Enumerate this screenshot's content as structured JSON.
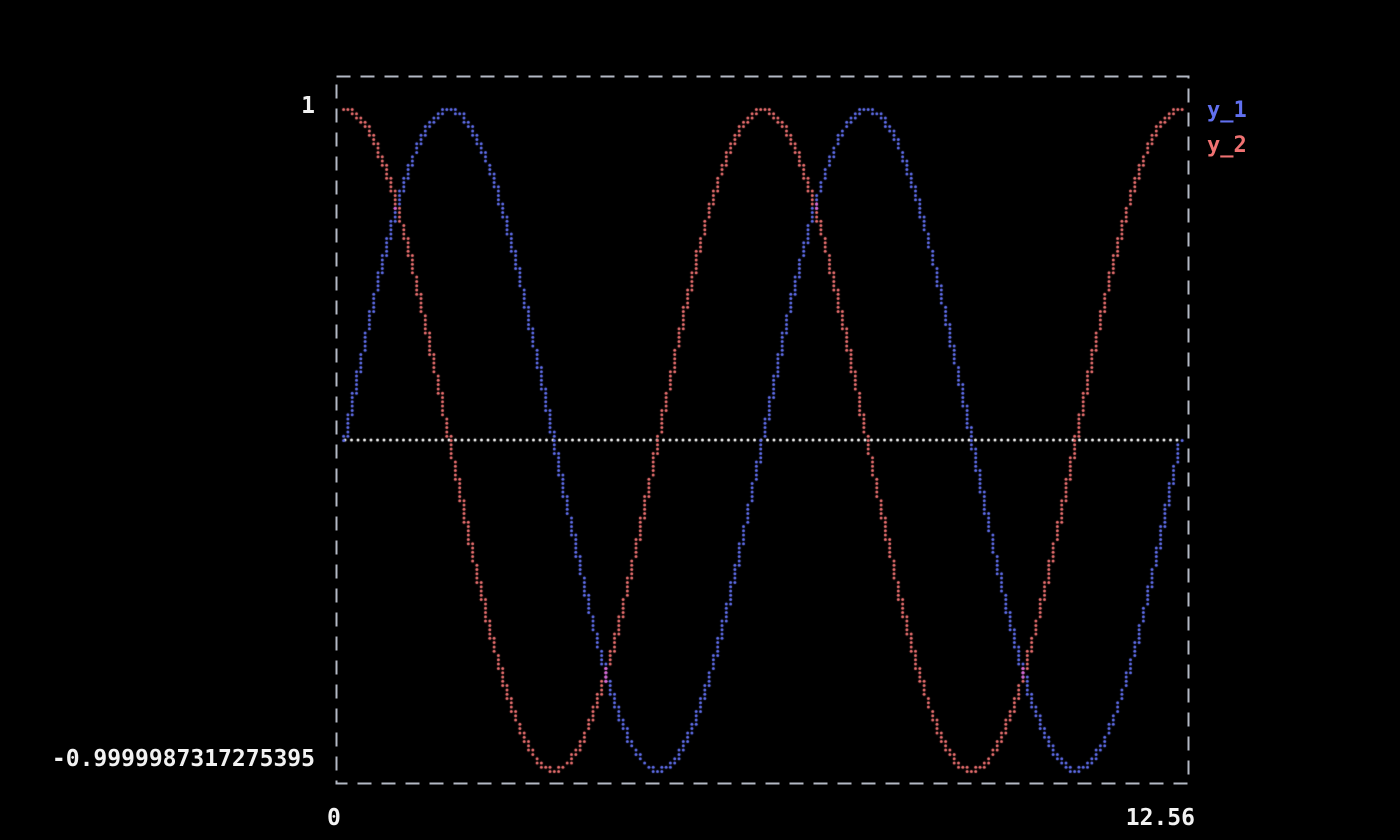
{
  "figure": {
    "background": "#000000",
    "border_color": "#b3b9c4",
    "text_color": "#f2f2f2"
  },
  "axes": {
    "y_top_label": "1",
    "y_bottom_label": "-0.9999987317275395",
    "x_left_label": "0",
    "x_right_label": "12.56"
  },
  "legend": {
    "items": [
      {
        "label": "y_1",
        "color": "#6170f0"
      },
      {
        "label": "y_2",
        "color": "#f07272"
      }
    ]
  },
  "chart_data": {
    "type": "scatter",
    "style": "dotted-terminal-plot",
    "title": "",
    "x": {
      "min": 0,
      "max": 12.56
    },
    "y": {
      "min": -0.9999987317275395,
      "max": 1
    },
    "series": [
      {
        "name": "y_1",
        "fn": "sin",
        "color": "#6170f0"
      },
      {
        "name": "y_2",
        "fn": "cos",
        "color": "#f07272"
      }
    ],
    "overlap_color": "#d868e0",
    "zero_line": {
      "show": true,
      "color": "#ffffff",
      "y": 0
    },
    "legend_position": "right",
    "n_samples": 2600
  }
}
